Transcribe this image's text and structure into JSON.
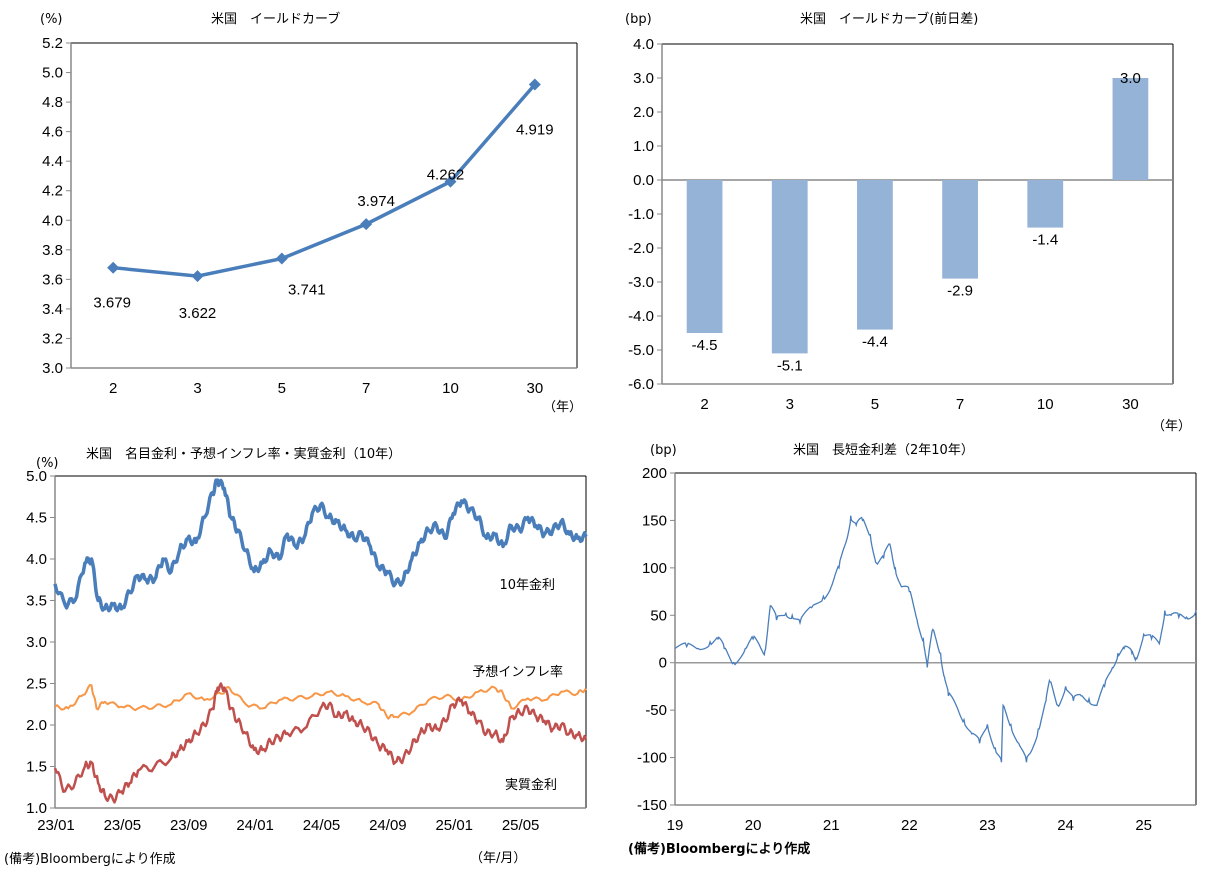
{
  "chart_data": [
    {
      "id": "yield-curve",
      "type": "line",
      "title": "米国　イールドカーブ",
      "ylabel": "(%)",
      "xlabel": "（年）",
      "categories": [
        "2",
        "3",
        "5",
        "7",
        "10",
        "30"
      ],
      "values": [
        3.679,
        3.622,
        3.741,
        3.974,
        4.262,
        4.919
      ],
      "value_labels": [
        "3.679",
        "3.622",
        "3.741",
        "3.974",
        "4.262",
        "4.919"
      ],
      "ylim": [
        3.0,
        5.2
      ],
      "yticks": [
        "3.0",
        "3.2",
        "3.4",
        "3.6",
        "3.8",
        "4.0",
        "4.2",
        "4.4",
        "4.6",
        "4.8",
        "5.0",
        "5.2"
      ],
      "color": "#4a7ebb",
      "marker": "diamond",
      "grid": false
    },
    {
      "id": "yield-curve-change",
      "type": "bar",
      "title": "米国　イールドカーブ(前日差)",
      "ylabel": "(bp)",
      "xlabel": "（年）",
      "categories": [
        "2",
        "3",
        "5",
        "7",
        "10",
        "30"
      ],
      "values": [
        -4.5,
        -5.1,
        -4.4,
        -2.9,
        -1.4,
        3.0
      ],
      "value_labels": [
        "-4.5",
        "-5.1",
        "-4.4",
        "-2.9",
        "-1.4",
        "3.0"
      ],
      "ylim": [
        -6.0,
        4.0
      ],
      "yticks": [
        "-6.0",
        "-5.0",
        "-4.0",
        "-3.0",
        "-2.0",
        "-1.0",
        "0.0",
        "1.0",
        "2.0",
        "3.0",
        "4.0"
      ],
      "color": "#95b3d7",
      "grid": false
    },
    {
      "id": "rates-10y",
      "type": "line",
      "title": "米国　名目金利・予想インフレ率・実質金利（10年）",
      "ylabel": "(%)",
      "xlabel": "（年/月）",
      "categories": [
        "23/01",
        "23/05",
        "23/09",
        "24/01",
        "24/05",
        "24/09",
        "25/01",
        "25/05"
      ],
      "x_range_months": [
        0,
        32
      ],
      "ylim": [
        1.0,
        5.0
      ],
      "yticks": [
        "1.0",
        "1.5",
        "2.0",
        "2.5",
        "3.0",
        "3.5",
        "4.0",
        "4.5",
        "5.0"
      ],
      "grid": false,
      "series": [
        {
          "name": "10年金利",
          "color": "#4a7ebb",
          "x": [
            0,
            0.6,
            1.2,
            1.8,
            2.2,
            2.6,
            3.0,
            3.5,
            4.0,
            4.5,
            5.0,
            5.5,
            6.0,
            6.5,
            7.0,
            7.5,
            8.0,
            8.5,
            9.0,
            9.5,
            9.8,
            10.2,
            10.6,
            11.0,
            11.5,
            12.0,
            12.5,
            13.0,
            13.5,
            14.0,
            14.5,
            15.0,
            15.5,
            16.0,
            16.5,
            17.0,
            17.5,
            18.0,
            18.5,
            19.0,
            19.5,
            20.0,
            20.5,
            21.0,
            21.5,
            22.0,
            22.5,
            23.0,
            23.5,
            24.0,
            24.5,
            25.0,
            25.5,
            26.0,
            26.5,
            27.0,
            27.5,
            28.0,
            28.5,
            29.0,
            29.5,
            30.0,
            30.5,
            31.0,
            31.5,
            32.0
          ],
          "values": [
            3.7,
            3.45,
            3.5,
            3.95,
            4.0,
            3.5,
            3.4,
            3.45,
            3.4,
            3.6,
            3.8,
            3.75,
            3.75,
            4.0,
            3.85,
            4.1,
            4.25,
            4.2,
            4.5,
            4.8,
            4.95,
            4.85,
            4.5,
            4.35,
            4.1,
            3.85,
            3.95,
            4.1,
            4.0,
            4.3,
            4.15,
            4.25,
            4.55,
            4.65,
            4.5,
            4.45,
            4.35,
            4.25,
            4.3,
            4.15,
            3.9,
            3.85,
            3.7,
            3.75,
            4.0,
            4.2,
            4.35,
            4.4,
            4.25,
            4.55,
            4.7,
            4.6,
            4.5,
            4.25,
            4.3,
            4.15,
            4.4,
            4.35,
            4.5,
            4.4,
            4.3,
            4.35,
            4.45,
            4.3,
            4.25,
            4.27
          ]
        },
        {
          "name": "予想インフレ率",
          "color": "#f79646",
          "x": [
            0,
            0.8,
            1.6,
            2.2,
            2.5,
            3.0,
            4.0,
            5.0,
            6.0,
            7.0,
            8.0,
            9.0,
            10.0,
            10.5,
            11.5,
            12.5,
            13.5,
            14.5,
            15.5,
            16.5,
            17.5,
            18.5,
            19.5,
            20.0,
            20.5,
            21.5,
            22.5,
            23.5,
            24.5,
            25.5,
            26.5,
            27.0,
            27.5,
            28.5,
            29.5,
            30.5,
            31.5,
            32.0
          ],
          "values": [
            2.22,
            2.2,
            2.35,
            2.48,
            2.2,
            2.28,
            2.22,
            2.2,
            2.22,
            2.25,
            2.38,
            2.3,
            2.38,
            2.45,
            2.25,
            2.2,
            2.3,
            2.32,
            2.35,
            2.4,
            2.35,
            2.28,
            2.25,
            2.1,
            2.1,
            2.15,
            2.3,
            2.35,
            2.3,
            2.4,
            2.45,
            2.38,
            2.2,
            2.32,
            2.3,
            2.4,
            2.38,
            2.44
          ]
        },
        {
          "name": "実質金利",
          "color": "#c0504d",
          "x": [
            0,
            0.6,
            1.2,
            1.8,
            2.2,
            2.6,
            3.0,
            3.5,
            4.0,
            4.5,
            5.0,
            6.0,
            7.0,
            7.5,
            8.0,
            8.5,
            9.0,
            9.5,
            9.8,
            10.2,
            10.6,
            11.0,
            11.5,
            12.0,
            12.5,
            13.0,
            13.5,
            14.0,
            15.0,
            16.0,
            16.5,
            17.0,
            17.5,
            18.0,
            18.5,
            19.0,
            19.5,
            20.0,
            20.5,
            21.0,
            21.5,
            22.0,
            22.5,
            23.0,
            23.5,
            24.0,
            24.5,
            25.0,
            25.5,
            26.0,
            26.5,
            27.0,
            27.5,
            28.0,
            28.5,
            29.0,
            29.5,
            30.0,
            30.5,
            31.0,
            31.5,
            32.0
          ],
          "values": [
            1.48,
            1.2,
            1.3,
            1.5,
            1.55,
            1.3,
            1.15,
            1.1,
            1.2,
            1.3,
            1.45,
            1.5,
            1.6,
            1.7,
            1.8,
            1.9,
            2.0,
            2.2,
            2.45,
            2.45,
            2.2,
            2.05,
            1.9,
            1.7,
            1.7,
            1.8,
            1.85,
            1.9,
            1.95,
            2.2,
            2.25,
            2.1,
            2.15,
            2.05,
            2.0,
            1.9,
            1.75,
            1.7,
            1.55,
            1.6,
            1.75,
            1.9,
            2.0,
            1.95,
            2.05,
            2.25,
            2.3,
            2.15,
            2.05,
            1.9,
            1.9,
            1.8,
            2.1,
            2.15,
            2.2,
            2.1,
            2.05,
            1.95,
            2.0,
            1.9,
            1.88,
            1.83
          ]
        }
      ],
      "series_labels": [
        "10年金利",
        "予想インフレ率",
        "実質金利"
      ]
    },
    {
      "id": "spread-2y10y",
      "type": "line",
      "title": "米国　長短金利差（2年10年）",
      "ylabel": "(bp)",
      "xlabel": "",
      "categories": [
        "19",
        "20",
        "21",
        "22",
        "23",
        "24",
        "25"
      ],
      "x_range_years": [
        2019,
        2025.67
      ],
      "ylim": [
        -150,
        200
      ],
      "yticks": [
        "-150",
        "-100",
        "-50",
        "0",
        "50",
        "100",
        "150",
        "200"
      ],
      "color": "#4a7ebb",
      "grid": false,
      "x": [
        2019.0,
        2019.15,
        2019.3,
        2019.45,
        2019.55,
        2019.63,
        2019.75,
        2019.9,
        2020.0,
        2020.1,
        2020.15,
        2020.22,
        2020.3,
        2020.42,
        2020.5,
        2020.6,
        2020.75,
        2020.9,
        2021.0,
        2021.1,
        2021.2,
        2021.25,
        2021.32,
        2021.4,
        2021.5,
        2021.58,
        2021.67,
        2021.75,
        2021.82,
        2021.9,
        2022.0,
        2022.1,
        2022.18,
        2022.23,
        2022.3,
        2022.4,
        2022.45,
        2022.5,
        2022.6,
        2022.7,
        2022.8,
        2022.9,
        2023.0,
        2023.1,
        2023.18,
        2023.2,
        2023.3,
        2023.4,
        2023.5,
        2023.55,
        2023.65,
        2023.75,
        2023.8,
        2023.9,
        2024.0,
        2024.1,
        2024.2,
        2024.3,
        2024.4,
        2024.5,
        2024.6,
        2024.67,
        2024.75,
        2024.85,
        2024.9,
        2025.0,
        2025.1,
        2025.2,
        2025.27,
        2025.35,
        2025.45,
        2025.55,
        2025.67
      ],
      "values": [
        15,
        17,
        15,
        22,
        25,
        15,
        0,
        15,
        25,
        15,
        12,
        60,
        45,
        52,
        50,
        42,
        58,
        70,
        80,
        100,
        130,
        155,
        145,
        150,
        135,
        105,
        110,
        125,
        100,
        80,
        75,
        45,
        25,
        -5,
        35,
        10,
        -15,
        -35,
        -45,
        -60,
        -75,
        -85,
        -65,
        -90,
        -105,
        -45,
        -65,
        -85,
        -105,
        -95,
        -70,
        -40,
        -20,
        -45,
        -25,
        -40,
        -35,
        -38,
        -45,
        -25,
        -5,
        10,
        15,
        10,
        5,
        30,
        25,
        20,
        55,
        50,
        48,
        48,
        55
      ]
    }
  ],
  "notes": {
    "source_left": "(備考)Bloombergにより作成",
    "source_right": "(備考)Bloombergにより作成"
  }
}
